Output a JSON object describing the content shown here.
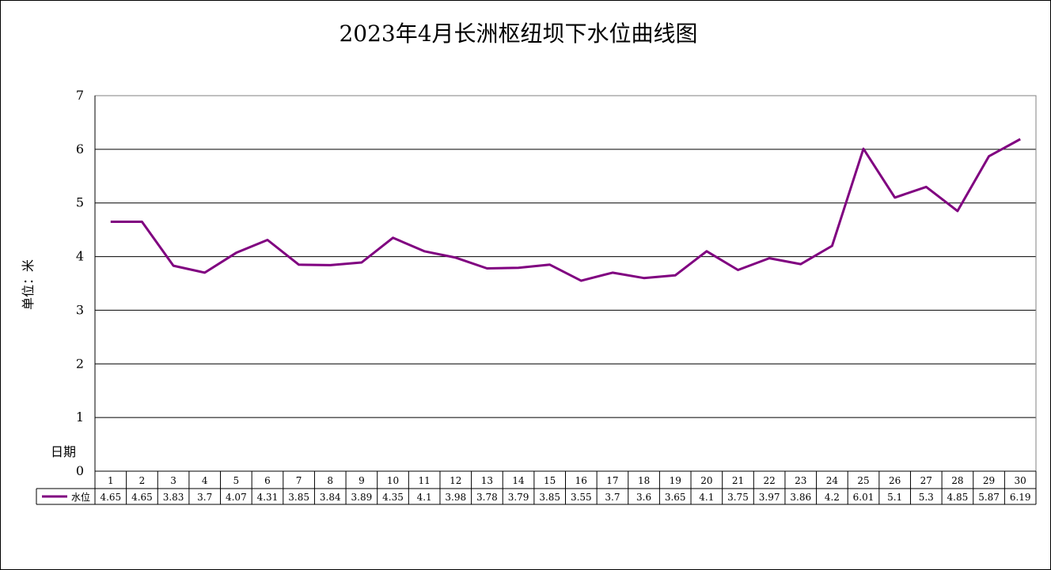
{
  "chart_data": {
    "type": "line",
    "title": "2023年4月长洲枢纽坝下水位曲线图",
    "ylabel": "单位：米",
    "xlabel": "日期",
    "ylim": [
      0,
      7
    ],
    "yticks": [
      "0",
      "1",
      "2",
      "3",
      "4",
      "5",
      "6",
      "7"
    ],
    "grid": true,
    "legend": "bottom data table",
    "categories": [
      "1",
      "2",
      "3",
      "4",
      "5",
      "6",
      "7",
      "8",
      "9",
      "10",
      "11",
      "12",
      "13",
      "14",
      "15",
      "16",
      "17",
      "18",
      "19",
      "20",
      "21",
      "22",
      "23",
      "24",
      "25",
      "26",
      "27",
      "28",
      "29",
      "30"
    ],
    "series": [
      {
        "name": "水位",
        "color": "#800080",
        "values": [
          4.65,
          4.65,
          3.83,
          3.7,
          4.07,
          4.31,
          3.85,
          3.84,
          3.89,
          4.35,
          4.1,
          3.98,
          3.78,
          3.79,
          3.85,
          3.55,
          3.7,
          3.6,
          3.65,
          4.1,
          3.75,
          3.97,
          3.86,
          4.2,
          6.01,
          5.1,
          5.3,
          4.85,
          5.87,
          6.19
        ],
        "labels": [
          "4.65",
          "4.65",
          "3.83",
          "3.7",
          "4.07",
          "4.31",
          "3.85",
          "3.84",
          "3.89",
          "4.35",
          "4.1",
          "3.98",
          "3.78",
          "3.79",
          "3.85",
          "3.55",
          "3.7",
          "3.6",
          "3.65",
          "4.1",
          "3.75",
          "3.97",
          "3.86",
          "4.2",
          "6.01",
          "5.1",
          "5.3",
          "4.85",
          "5.87",
          "6.19"
        ]
      }
    ]
  }
}
